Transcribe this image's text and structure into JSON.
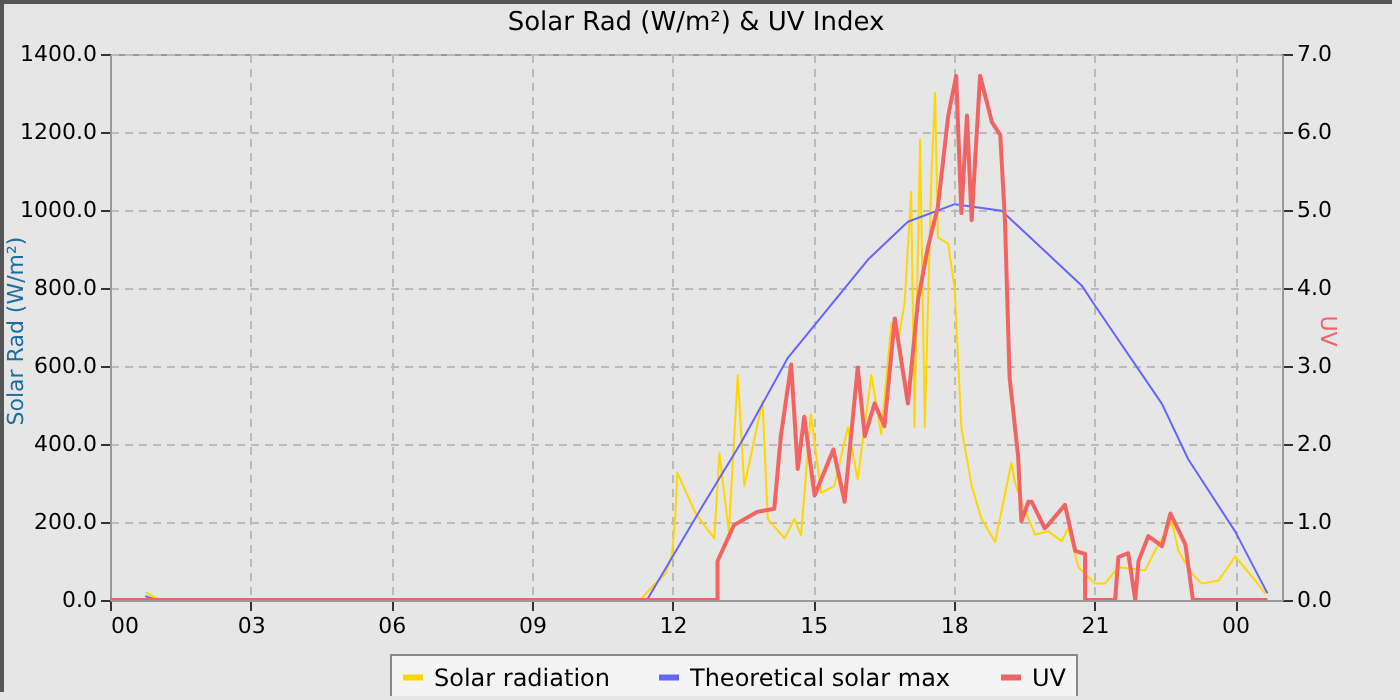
{
  "chart_data": {
    "type": "line",
    "title": "Solar Rad (W/m²) &  UV Index",
    "ylabel": "Solar Rad (W/m²)",
    "y2label": "UV",
    "xlim": [
      0,
      25
    ],
    "xticks": [
      {
        "value": 0,
        "label": "00"
      },
      {
        "value": 3,
        "label": "03"
      },
      {
        "value": 6,
        "label": "06"
      },
      {
        "value": 9,
        "label": "09"
      },
      {
        "value": 12,
        "label": "12"
      },
      {
        "value": 15,
        "label": "15"
      },
      {
        "value": 18,
        "label": "18"
      },
      {
        "value": 21,
        "label": "21"
      },
      {
        "value": 24,
        "label": "00"
      }
    ],
    "ylim": [
      0,
      1400
    ],
    "yticks": [
      {
        "value": 0,
        "label": "0.0"
      },
      {
        "value": 200,
        "label": "200.0"
      },
      {
        "value": 400,
        "label": "400.0"
      },
      {
        "value": 600,
        "label": "600.0"
      },
      {
        "value": 800,
        "label": "800.0"
      },
      {
        "value": 1000,
        "label": "1000.0"
      },
      {
        "value": 1200,
        "label": "1200.0"
      },
      {
        "value": 1400,
        "label": "1400.0"
      }
    ],
    "y2lim": [
      0,
      7
    ],
    "y2ticks": [
      {
        "value": 0,
        "label": "0.0"
      },
      {
        "value": 1,
        "label": "1.0"
      },
      {
        "value": 2,
        "label": "2.0"
      },
      {
        "value": 3,
        "label": "3.0"
      },
      {
        "value": 4,
        "label": "4.0"
      },
      {
        "value": 5,
        "label": "5.0"
      },
      {
        "value": 6,
        "label": "6.0"
      },
      {
        "value": 7,
        "label": "7.0"
      }
    ],
    "grid": true,
    "legend": "bottom",
    "line_style": "solid",
    "series": [
      {
        "name": "Solar radiation",
        "color": "#ffd700",
        "x": [
          0.75,
          0.9,
          1.1,
          11.2,
          11.33,
          11.62,
          11.85,
          11.99,
          12.06,
          12.1,
          12.5,
          12.89,
          13.0,
          13.2,
          13.39,
          13.53,
          13.92,
          14.03,
          14.39,
          14.6,
          14.74,
          14.95,
          15.17,
          15.45,
          15.74,
          15.95,
          16.24,
          16.45,
          16.67,
          16.81,
          16.95,
          17.09,
          17.16,
          17.28,
          17.38,
          17.52,
          17.6,
          17.66,
          17.88,
          18.02,
          18.16,
          18.38,
          18.59,
          18.88,
          19.23,
          19.3,
          19.44,
          19.73,
          20.02,
          20.3,
          20.44,
          20.66,
          21.01,
          21.22,
          21.51,
          22.08,
          22.29,
          22.65,
          22.79,
          23.08,
          23.29,
          23.65,
          24.0,
          24.43,
          24.64
        ],
        "values": [
          20,
          10,
          0,
          0,
          3,
          41,
          67,
          117,
          218,
          327,
          220,
          158,
          376,
          175,
          577,
          292,
          510,
          208,
          158,
          208,
          166,
          476,
          275,
          292,
          443,
          309,
          577,
          426,
          711,
          661,
          762,
          1047,
          443,
          1181,
          443,
          1081,
          1300,
          930,
          913,
          795,
          443,
          292,
          208,
          149,
          352,
          302,
          252,
          168,
          176,
          151,
          185,
          84,
          42,
          42,
          84,
          76,
          126,
          201,
          126,
          67,
          42,
          50,
          112,
          50,
          17
        ]
      },
      {
        "name": "Theoretical solar max",
        "color": "#6464ff",
        "x": [
          0.75,
          1.0,
          11.2,
          11.47,
          12.61,
          13.46,
          14.46,
          15.03,
          16.17,
          17.02,
          18.02,
          19.02,
          20.73,
          21.01,
          22.44,
          23.0,
          24.0,
          24.69
        ],
        "values": [
          10,
          0,
          0,
          3,
          235,
          403,
          621,
          705,
          873,
          970,
          1015,
          998,
          806,
          755,
          503,
          361,
          176,
          17
        ]
      },
      {
        "name": "UV",
        "color": "#f06464",
        "axis": "y2",
        "x": [
          0,
          12.96,
          12.96,
          13.31,
          13.81,
          14.17,
          14.31,
          14.53,
          14.67,
          14.81,
          15.03,
          15.43,
          15.67,
          15.95,
          16.1,
          16.31,
          16.52,
          16.74,
          17.02,
          17.24,
          17.45,
          17.66,
          17.88,
          18.05,
          18.16,
          18.28,
          18.38,
          18.56,
          18.81,
          18.99,
          19.09,
          19.19,
          19.37,
          19.44,
          19.59,
          19.66,
          19.94,
          20.02,
          20.37,
          20.59,
          20.8,
          20.8,
          21.44,
          21.51,
          21.72,
          21.87,
          21.94,
          22.15,
          22.44,
          22.62,
          22.94,
          23.1,
          24.69
        ],
        "values": [
          0,
          0,
          0.5,
          0.96,
          1.13,
          1.17,
          2.1,
          3.02,
          1.68,
          2.35,
          1.34,
          1.93,
          1.26,
          2.98,
          2.1,
          2.52,
          2.23,
          3.61,
          2.52,
          3.86,
          4.53,
          5.04,
          6.21,
          6.72,
          4.96,
          6.21,
          4.87,
          6.72,
          6.13,
          5.96,
          4.87,
          2.85,
          1.85,
          1.01,
          1.26,
          1.26,
          0.92,
          0.97,
          1.22,
          0.63,
          0.59,
          0,
          0,
          0.55,
          0.6,
          0,
          0.5,
          0.82,
          0.69,
          1.11,
          0.71,
          0,
          0
        ]
      }
    ]
  }
}
